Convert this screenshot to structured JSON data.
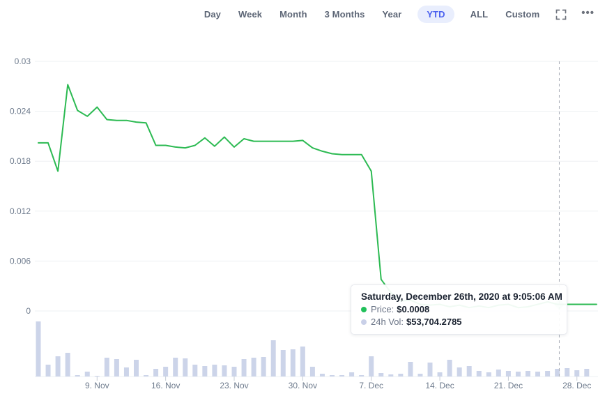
{
  "toolbar": {
    "ranges": [
      "Day",
      "Week",
      "Month",
      "3 Months",
      "Year",
      "YTD",
      "ALL",
      "Custom"
    ],
    "active_range": "YTD",
    "fullscreen_icon": "fullscreen-expand-icon",
    "more_label": "•••"
  },
  "tooltip": {
    "title": "Saturday, December 26th, 2020 at 9:05:06 AM",
    "rows": [
      {
        "dot_color": "#21c05a",
        "label": "Price:",
        "value": "$0.0008"
      },
      {
        "dot_color": "#c9d0e8",
        "label": "24h Vol:",
        "value": "$53,704.2785"
      }
    ]
  },
  "chart_data": {
    "type": "line",
    "title": "",
    "xlabel": "",
    "ylabel": "",
    "grid": true,
    "legend_position": "none",
    "ylim": [
      0,
      0.03
    ],
    "y_ticks": [
      "0.03",
      "0.024",
      "0.018",
      "0.012",
      "0.006",
      "0"
    ],
    "x_ticks": [
      {
        "label": "9. Nov",
        "day": 6
      },
      {
        "label": "16. Nov",
        "day": 13
      },
      {
        "label": "23. Nov",
        "day": 20
      },
      {
        "label": "30. Nov",
        "day": 27
      },
      {
        "label": "7. Dec",
        "day": 34
      },
      {
        "label": "14. Dec",
        "day": 41
      },
      {
        "label": "21. Dec",
        "day": 48
      },
      {
        "label": "28. Dec",
        "day": 55
      }
    ],
    "series": [
      {
        "name": "Price",
        "type": "line",
        "color": "#2cba52",
        "values": [
          0.0202,
          0.0202,
          0.0168,
          0.0272,
          0.0241,
          0.0234,
          0.0245,
          0.023,
          0.0229,
          0.0229,
          0.0227,
          0.0226,
          0.0199,
          0.0199,
          0.0197,
          0.0196,
          0.0199,
          0.0208,
          0.0198,
          0.0209,
          0.0197,
          0.0207,
          0.0204,
          0.0204,
          0.0204,
          0.0204,
          0.0204,
          0.0205,
          0.0196,
          0.0192,
          0.0189,
          0.0188,
          0.0188,
          0.0188,
          0.0168,
          0.0038,
          0.0022,
          0.0012,
          0.0013,
          0.0008,
          0.0007,
          0.0008,
          0.0005,
          0.0007,
          0.0004,
          0.0006,
          0.0004,
          0.0007,
          0.0008,
          0.0004,
          0.0005,
          0.0008,
          0.0011,
          0.0008,
          0.0008,
          0.0008,
          0.0008,
          0.0008
        ]
      },
      {
        "name": "24h Vol",
        "type": "bar",
        "color": "#ccd4e9",
        "values_relative": [
          79,
          17,
          29,
          34,
          2,
          7,
          1,
          27,
          25,
          13,
          24,
          2,
          11,
          14,
          27,
          26,
          17,
          15,
          17,
          16,
          14,
          25,
          27,
          28,
          52,
          38,
          39,
          43,
          14,
          4,
          2,
          2,
          6,
          2,
          29,
          5,
          3,
          4,
          21,
          4,
          20,
          6,
          24,
          13,
          15,
          8,
          6,
          10,
          8,
          7,
          8,
          7,
          8,
          11,
          12,
          9,
          11
        ]
      }
    ],
    "crosshair": {
      "day": 53.2,
      "price": 0.0008,
      "style": "dashed-vertical"
    },
    "hover_marker": "diamond",
    "colors": {
      "grid": "#edf0f3",
      "axis_text": "#6e7b8d",
      "crosshair": "#a9aeb8"
    }
  }
}
